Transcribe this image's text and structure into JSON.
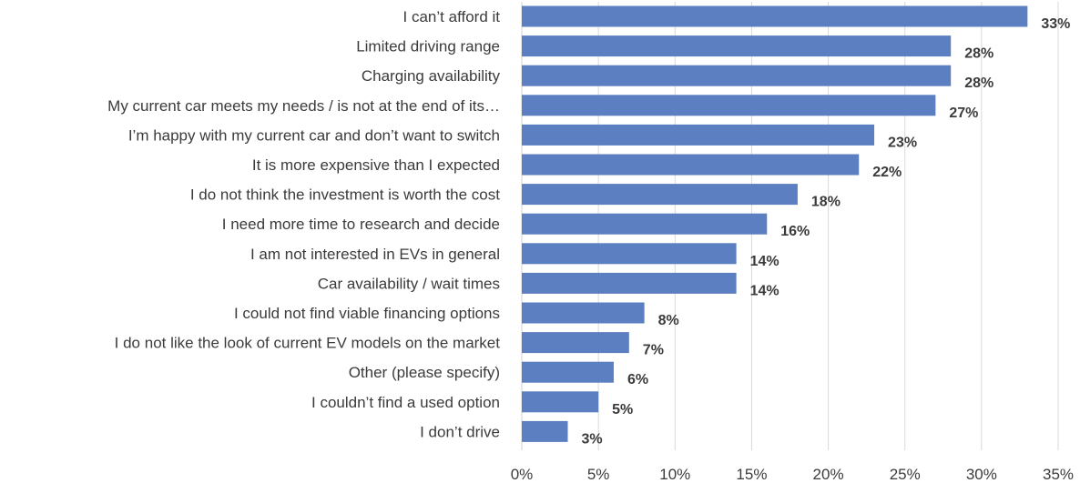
{
  "chart_data": {
    "type": "bar",
    "orientation": "horizontal",
    "title": "",
    "xlabel": "",
    "ylabel": "",
    "categories": [
      "I can’t afford it",
      "Limited driving range",
      "Charging availability",
      "My current car meets my needs / is not at the end of its…",
      "I’m happy with my current car and don’t want to switch",
      "It is more expensive than I expected",
      "I do not think the investment is worth the cost",
      "I need more time to research and decide",
      "I am not interested in EVs in general",
      "Car availability / wait times",
      "I could not find viable financing options",
      "I do not like the look of current EV models on the market",
      "Other (please specify)",
      "I couldn’t find a used option",
      "I don’t drive"
    ],
    "values": [
      33,
      28,
      28,
      27,
      23,
      22,
      18,
      16,
      14,
      14,
      8,
      7,
      6,
      5,
      3
    ],
    "value_labels": [
      "33%",
      "28%",
      "28%",
      "27%",
      "23%",
      "22%",
      "18%",
      "16%",
      "14%",
      "14%",
      "8%",
      "7%",
      "6%",
      "5%",
      "3%"
    ],
    "xlim": [
      0,
      35
    ],
    "x_ticks": [
      "0%",
      "5%",
      "10%",
      "15%",
      "20%",
      "25%",
      "30%",
      "35%"
    ],
    "grid": true,
    "legend": "none",
    "bar_color": "#5b7fc0",
    "grid_color": "#d9d9d9",
    "text_color": "#3b3b3b"
  }
}
